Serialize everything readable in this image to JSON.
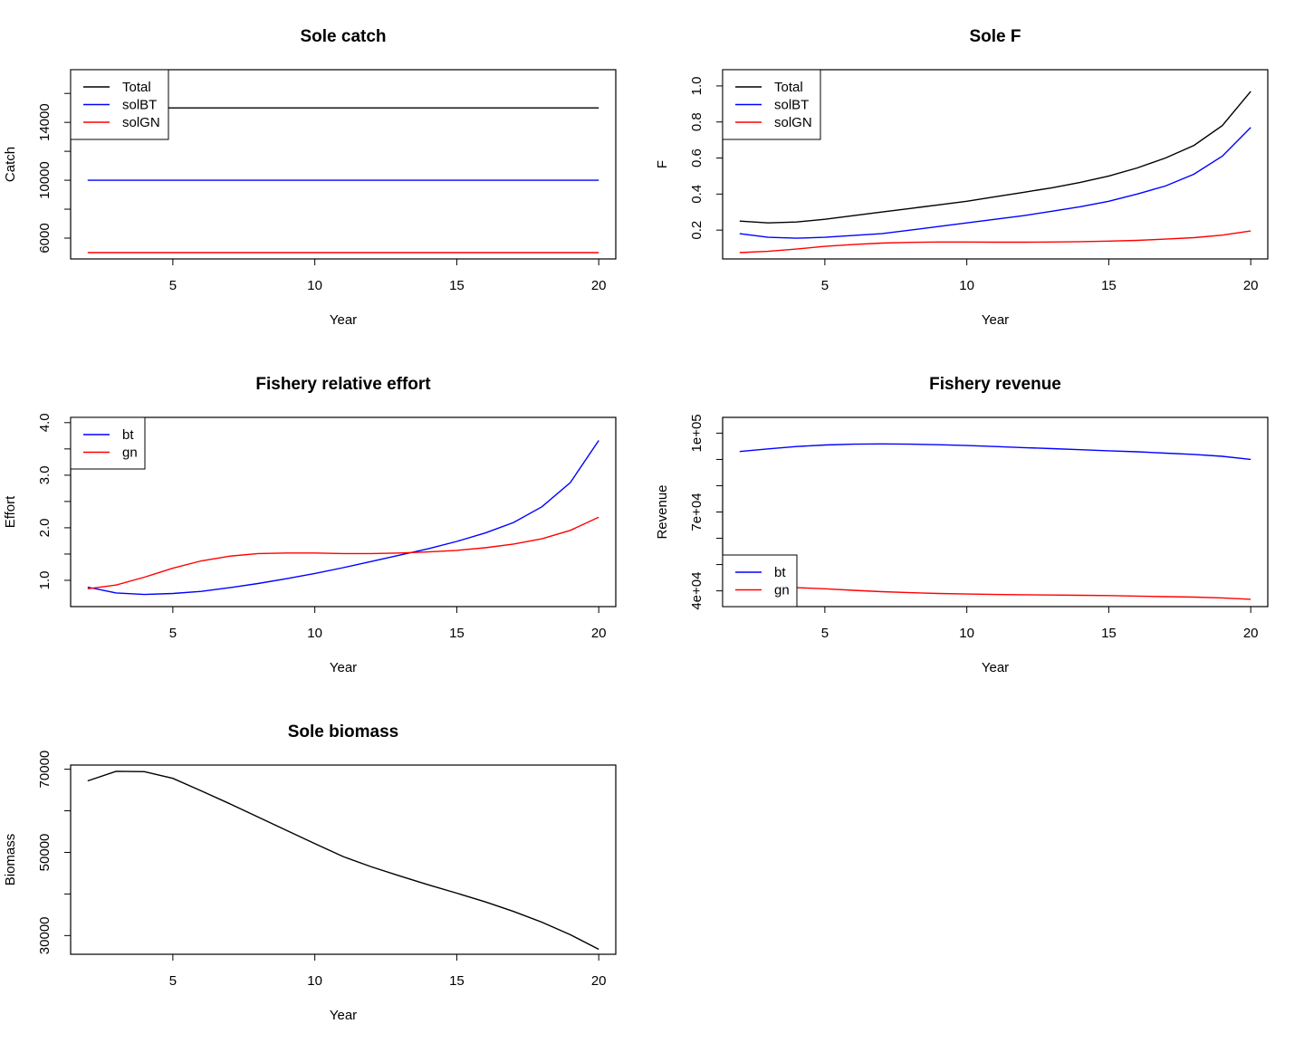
{
  "chart_data": [
    {
      "type": "line",
      "title": "Sole catch",
      "xlabel": "Year",
      "ylabel": "Catch",
      "xlim": [
        1.4,
        20.6
      ],
      "ylim": [
        4560,
        17640
      ],
      "x_ticks": [
        5,
        10,
        15,
        20
      ],
      "x_tick_labels": [
        "5",
        "10",
        "15",
        "20"
      ],
      "y_ticks": [
        6000,
        8000,
        10000,
        12000,
        14000,
        16000
      ],
      "y_tick_labels": [
        "6000",
        "",
        "10000",
        "",
        "14000",
        ""
      ],
      "legend_position": "top-left",
      "x": [
        2,
        3,
        4,
        5,
        6,
        7,
        8,
        9,
        10,
        11,
        12,
        13,
        14,
        15,
        16,
        17,
        18,
        19,
        20
      ],
      "series": [
        {
          "name": "Total",
          "color": "#000000",
          "values": [
            15000,
            15000,
            15000,
            15000,
            15000,
            15000,
            15000,
            15000,
            15000,
            15000,
            15000,
            15000,
            15000,
            15000,
            15000,
            15000,
            15000,
            15000,
            15000
          ]
        },
        {
          "name": "solBT",
          "color": "#0000ff",
          "values": [
            10000,
            10000,
            10000,
            10000,
            10000,
            10000,
            10000,
            10000,
            10000,
            10000,
            10000,
            10000,
            10000,
            10000,
            10000,
            10000,
            10000,
            10000,
            10000
          ]
        },
        {
          "name": "solGN",
          "color": "#ff0000",
          "values": [
            5000,
            5000,
            5000,
            5000,
            5000,
            5000,
            5000,
            5000,
            5000,
            5000,
            5000,
            5000,
            5000,
            5000,
            5000,
            5000,
            5000,
            5000,
            5000
          ]
        }
      ]
    },
    {
      "type": "line",
      "title": "Sole F",
      "xlabel": "Year",
      "ylabel": "F",
      "xlim": [
        1.4,
        20.6
      ],
      "ylim": [
        0.04,
        1.09
      ],
      "x_ticks": [
        5,
        10,
        15,
        20
      ],
      "x_tick_labels": [
        "5",
        "10",
        "15",
        "20"
      ],
      "y_ticks": [
        0.2,
        0.4,
        0.6,
        0.8,
        1.0
      ],
      "y_tick_labels": [
        "0.2",
        "0.4",
        "0.6",
        "0.8",
        "1.0"
      ],
      "legend_position": "top-left",
      "x": [
        2,
        3,
        4,
        5,
        6,
        7,
        8,
        9,
        10,
        11,
        12,
        13,
        14,
        15,
        16,
        17,
        18,
        19,
        20
      ],
      "series": [
        {
          "name": "Total",
          "color": "#000000",
          "values": [
            0.25,
            0.24,
            0.245,
            0.26,
            0.28,
            0.3,
            0.32,
            0.34,
            0.36,
            0.385,
            0.41,
            0.435,
            0.465,
            0.5,
            0.545,
            0.6,
            0.67,
            0.78,
            0.97
          ]
        },
        {
          "name": "solBT",
          "color": "#0000ff",
          "values": [
            0.18,
            0.16,
            0.155,
            0.16,
            0.17,
            0.18,
            0.2,
            0.22,
            0.24,
            0.26,
            0.28,
            0.305,
            0.33,
            0.36,
            0.4,
            0.445,
            0.51,
            0.61,
            0.77
          ]
        },
        {
          "name": "solGN",
          "color": "#ff0000",
          "values": [
            0.075,
            0.082,
            0.095,
            0.11,
            0.12,
            0.128,
            0.132,
            0.134,
            0.134,
            0.133,
            0.133,
            0.134,
            0.136,
            0.139,
            0.143,
            0.15,
            0.158,
            0.172,
            0.195
          ]
        }
      ]
    },
    {
      "type": "line",
      "title": "Fishery relative effort",
      "xlabel": "Year",
      "ylabel": "Effort",
      "xlim": [
        1.4,
        20.6
      ],
      "ylim": [
        0.5,
        4.1
      ],
      "x_ticks": [
        5,
        10,
        15,
        20
      ],
      "x_tick_labels": [
        "5",
        "10",
        "15",
        "20"
      ],
      "y_ticks": [
        1.0,
        1.5,
        2.0,
        2.5,
        3.0,
        3.5,
        4.0
      ],
      "y_tick_labels": [
        "1.0",
        "",
        "2.0",
        "",
        "3.0",
        "",
        "4.0"
      ],
      "legend_position": "top-left",
      "x": [
        2,
        3,
        4,
        5,
        6,
        7,
        8,
        9,
        10,
        11,
        12,
        13,
        14,
        15,
        16,
        17,
        18,
        19,
        20
      ],
      "series": [
        {
          "name": "bt",
          "color": "#0000ff",
          "values": [
            0.87,
            0.76,
            0.73,
            0.75,
            0.79,
            0.86,
            0.94,
            1.03,
            1.13,
            1.24,
            1.36,
            1.48,
            1.6,
            1.74,
            1.9,
            2.1,
            2.4,
            2.86,
            3.66
          ]
        },
        {
          "name": "gn",
          "color": "#ff0000",
          "values": [
            0.84,
            0.91,
            1.06,
            1.23,
            1.37,
            1.46,
            1.51,
            1.52,
            1.52,
            1.51,
            1.51,
            1.52,
            1.54,
            1.57,
            1.62,
            1.69,
            1.79,
            1.95,
            2.2
          ]
        }
      ]
    },
    {
      "type": "line",
      "title": "Fishery revenue",
      "xlabel": "Year",
      "ylabel": "Revenue",
      "xlim": [
        1.4,
        20.6
      ],
      "ylim": [
        34000,
        106000
      ],
      "x_ticks": [
        5,
        10,
        15,
        20
      ],
      "x_tick_labels": [
        "5",
        "10",
        "15",
        "20"
      ],
      "y_ticks": [
        40000,
        50000,
        60000,
        70000,
        80000,
        90000,
        100000
      ],
      "y_tick_labels": [
        "4e+04",
        "",
        "",
        "7e+04",
        "",
        "",
        "1e+05"
      ],
      "legend_position": "bottom-left",
      "x": [
        2,
        3,
        4,
        5,
        6,
        7,
        8,
        9,
        10,
        11,
        12,
        13,
        14,
        15,
        16,
        17,
        18,
        19,
        20
      ],
      "series": [
        {
          "name": "bt",
          "color": "#0000ff",
          "values": [
            93000,
            94000,
            94900,
            95500,
            95800,
            95900,
            95800,
            95600,
            95300,
            94900,
            94500,
            94100,
            93700,
            93300,
            92900,
            92400,
            91900,
            91200,
            90000
          ]
        },
        {
          "name": "gn",
          "color": "#ff0000",
          "values": [
            41700,
            41600,
            41200,
            40800,
            40200,
            39700,
            39300,
            39000,
            38800,
            38600,
            38500,
            38400,
            38300,
            38200,
            38000,
            37800,
            37600,
            37300,
            36800
          ]
        }
      ]
    },
    {
      "type": "line",
      "title": "Sole biomass",
      "xlabel": "Year",
      "ylabel": "Biomass",
      "xlim": [
        1.4,
        20.6
      ],
      "ylim": [
        25500,
        71000
      ],
      "x_ticks": [
        5,
        10,
        15,
        20
      ],
      "x_tick_labels": [
        "5",
        "10",
        "15",
        "20"
      ],
      "y_ticks": [
        30000,
        40000,
        50000,
        60000,
        70000
      ],
      "y_tick_labels": [
        "30000",
        "",
        "50000",
        "",
        "70000"
      ],
      "legend_position": "none",
      "x": [
        2,
        3,
        4,
        5,
        6,
        7,
        8,
        9,
        10,
        11,
        12,
        13,
        14,
        15,
        16,
        17,
        18,
        19,
        20
      ],
      "series": [
        {
          "color": "#000000",
          "values": [
            67200,
            69500,
            69400,
            67800,
            64800,
            61700,
            58500,
            55300,
            52100,
            49000,
            46500,
            44300,
            42200,
            40200,
            38100,
            35800,
            33200,
            30200,
            26700
          ]
        }
      ]
    }
  ]
}
